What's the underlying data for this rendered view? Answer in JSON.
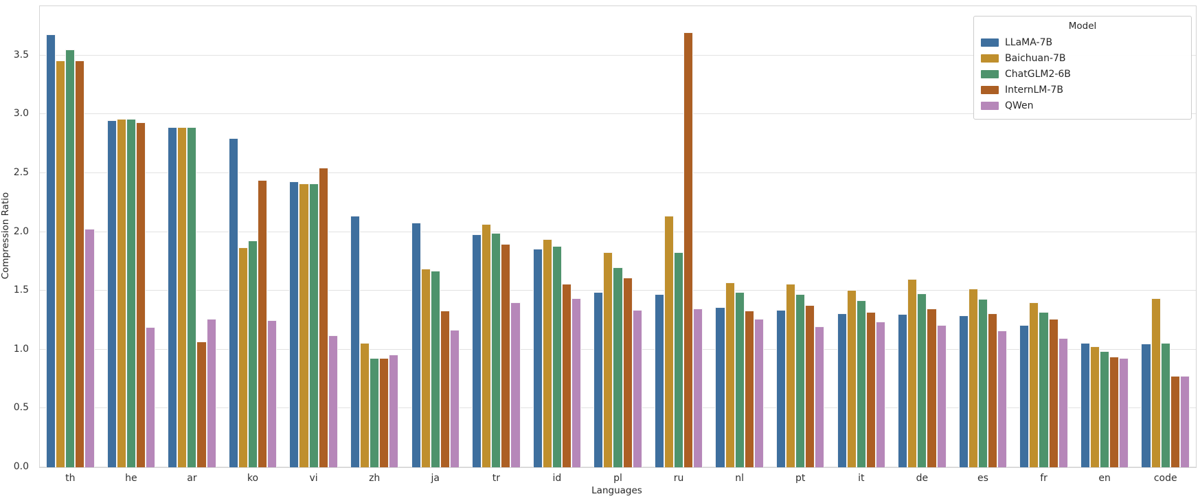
{
  "figure": {
    "ylabel": "Compression Ratio",
    "xlabel": "Languages",
    "legend_title": "Model"
  },
  "chart_data": {
    "type": "bar",
    "title": "",
    "xlabel": "Languages",
    "ylabel": "Compression Ratio",
    "grid": true,
    "legend_position": "upper right",
    "legend_title": "Model",
    "ylim": [
      0,
      3.92
    ],
    "yticks": [
      0.0,
      0.5,
      1.0,
      1.5,
      2.0,
      2.5,
      3.0,
      3.5
    ],
    "ytick_labels": [
      "0.0",
      "0.5",
      "1.0",
      "1.5",
      "2.0",
      "2.5",
      "3.0",
      "3.5"
    ],
    "categories": [
      "th",
      "he",
      "ar",
      "ko",
      "vi",
      "zh",
      "ja",
      "tr",
      "id",
      "pl",
      "ru",
      "nl",
      "pt",
      "it",
      "de",
      "es",
      "fr",
      "en",
      "code"
    ],
    "series": [
      {
        "name": "LLaMA-7B",
        "color": "#3E6F9E",
        "values": [
          3.68,
          2.95,
          2.89,
          2.8,
          2.43,
          2.14,
          2.08,
          1.98,
          1.86,
          1.49,
          1.47,
          1.36,
          1.34,
          1.31,
          1.3,
          1.29,
          1.21,
          1.06,
          1.05
        ]
      },
      {
        "name": "Baichuan-7B",
        "color": "#BF8F2D",
        "values": [
          3.46,
          2.96,
          2.89,
          1.87,
          2.41,
          1.06,
          1.69,
          2.07,
          1.94,
          1.83,
          2.14,
          1.57,
          1.56,
          1.51,
          1.6,
          1.52,
          1.4,
          1.03,
          1.44
        ]
      },
      {
        "name": "ChatGLM2-6B",
        "color": "#4E936C",
        "values": [
          3.55,
          2.96,
          2.89,
          1.93,
          2.41,
          0.93,
          1.67,
          1.99,
          1.88,
          1.7,
          1.83,
          1.49,
          1.47,
          1.42,
          1.48,
          1.43,
          1.32,
          0.99,
          1.06
        ]
      },
      {
        "name": "InternLM-7B",
        "color": "#AC5F24",
        "values": [
          3.46,
          2.93,
          1.07,
          2.44,
          2.55,
          0.93,
          1.33,
          1.9,
          1.56,
          1.61,
          3.7,
          1.33,
          1.38,
          1.32,
          1.35,
          1.31,
          1.26,
          0.94,
          0.78
        ]
      },
      {
        "name": "QWen",
        "color": "#B687B9",
        "values": [
          2.03,
          1.19,
          1.26,
          1.25,
          1.12,
          0.96,
          1.17,
          1.4,
          1.44,
          1.34,
          1.35,
          1.26,
          1.2,
          1.24,
          1.21,
          1.16,
          1.1,
          0.93,
          0.78
        ]
      }
    ]
  }
}
